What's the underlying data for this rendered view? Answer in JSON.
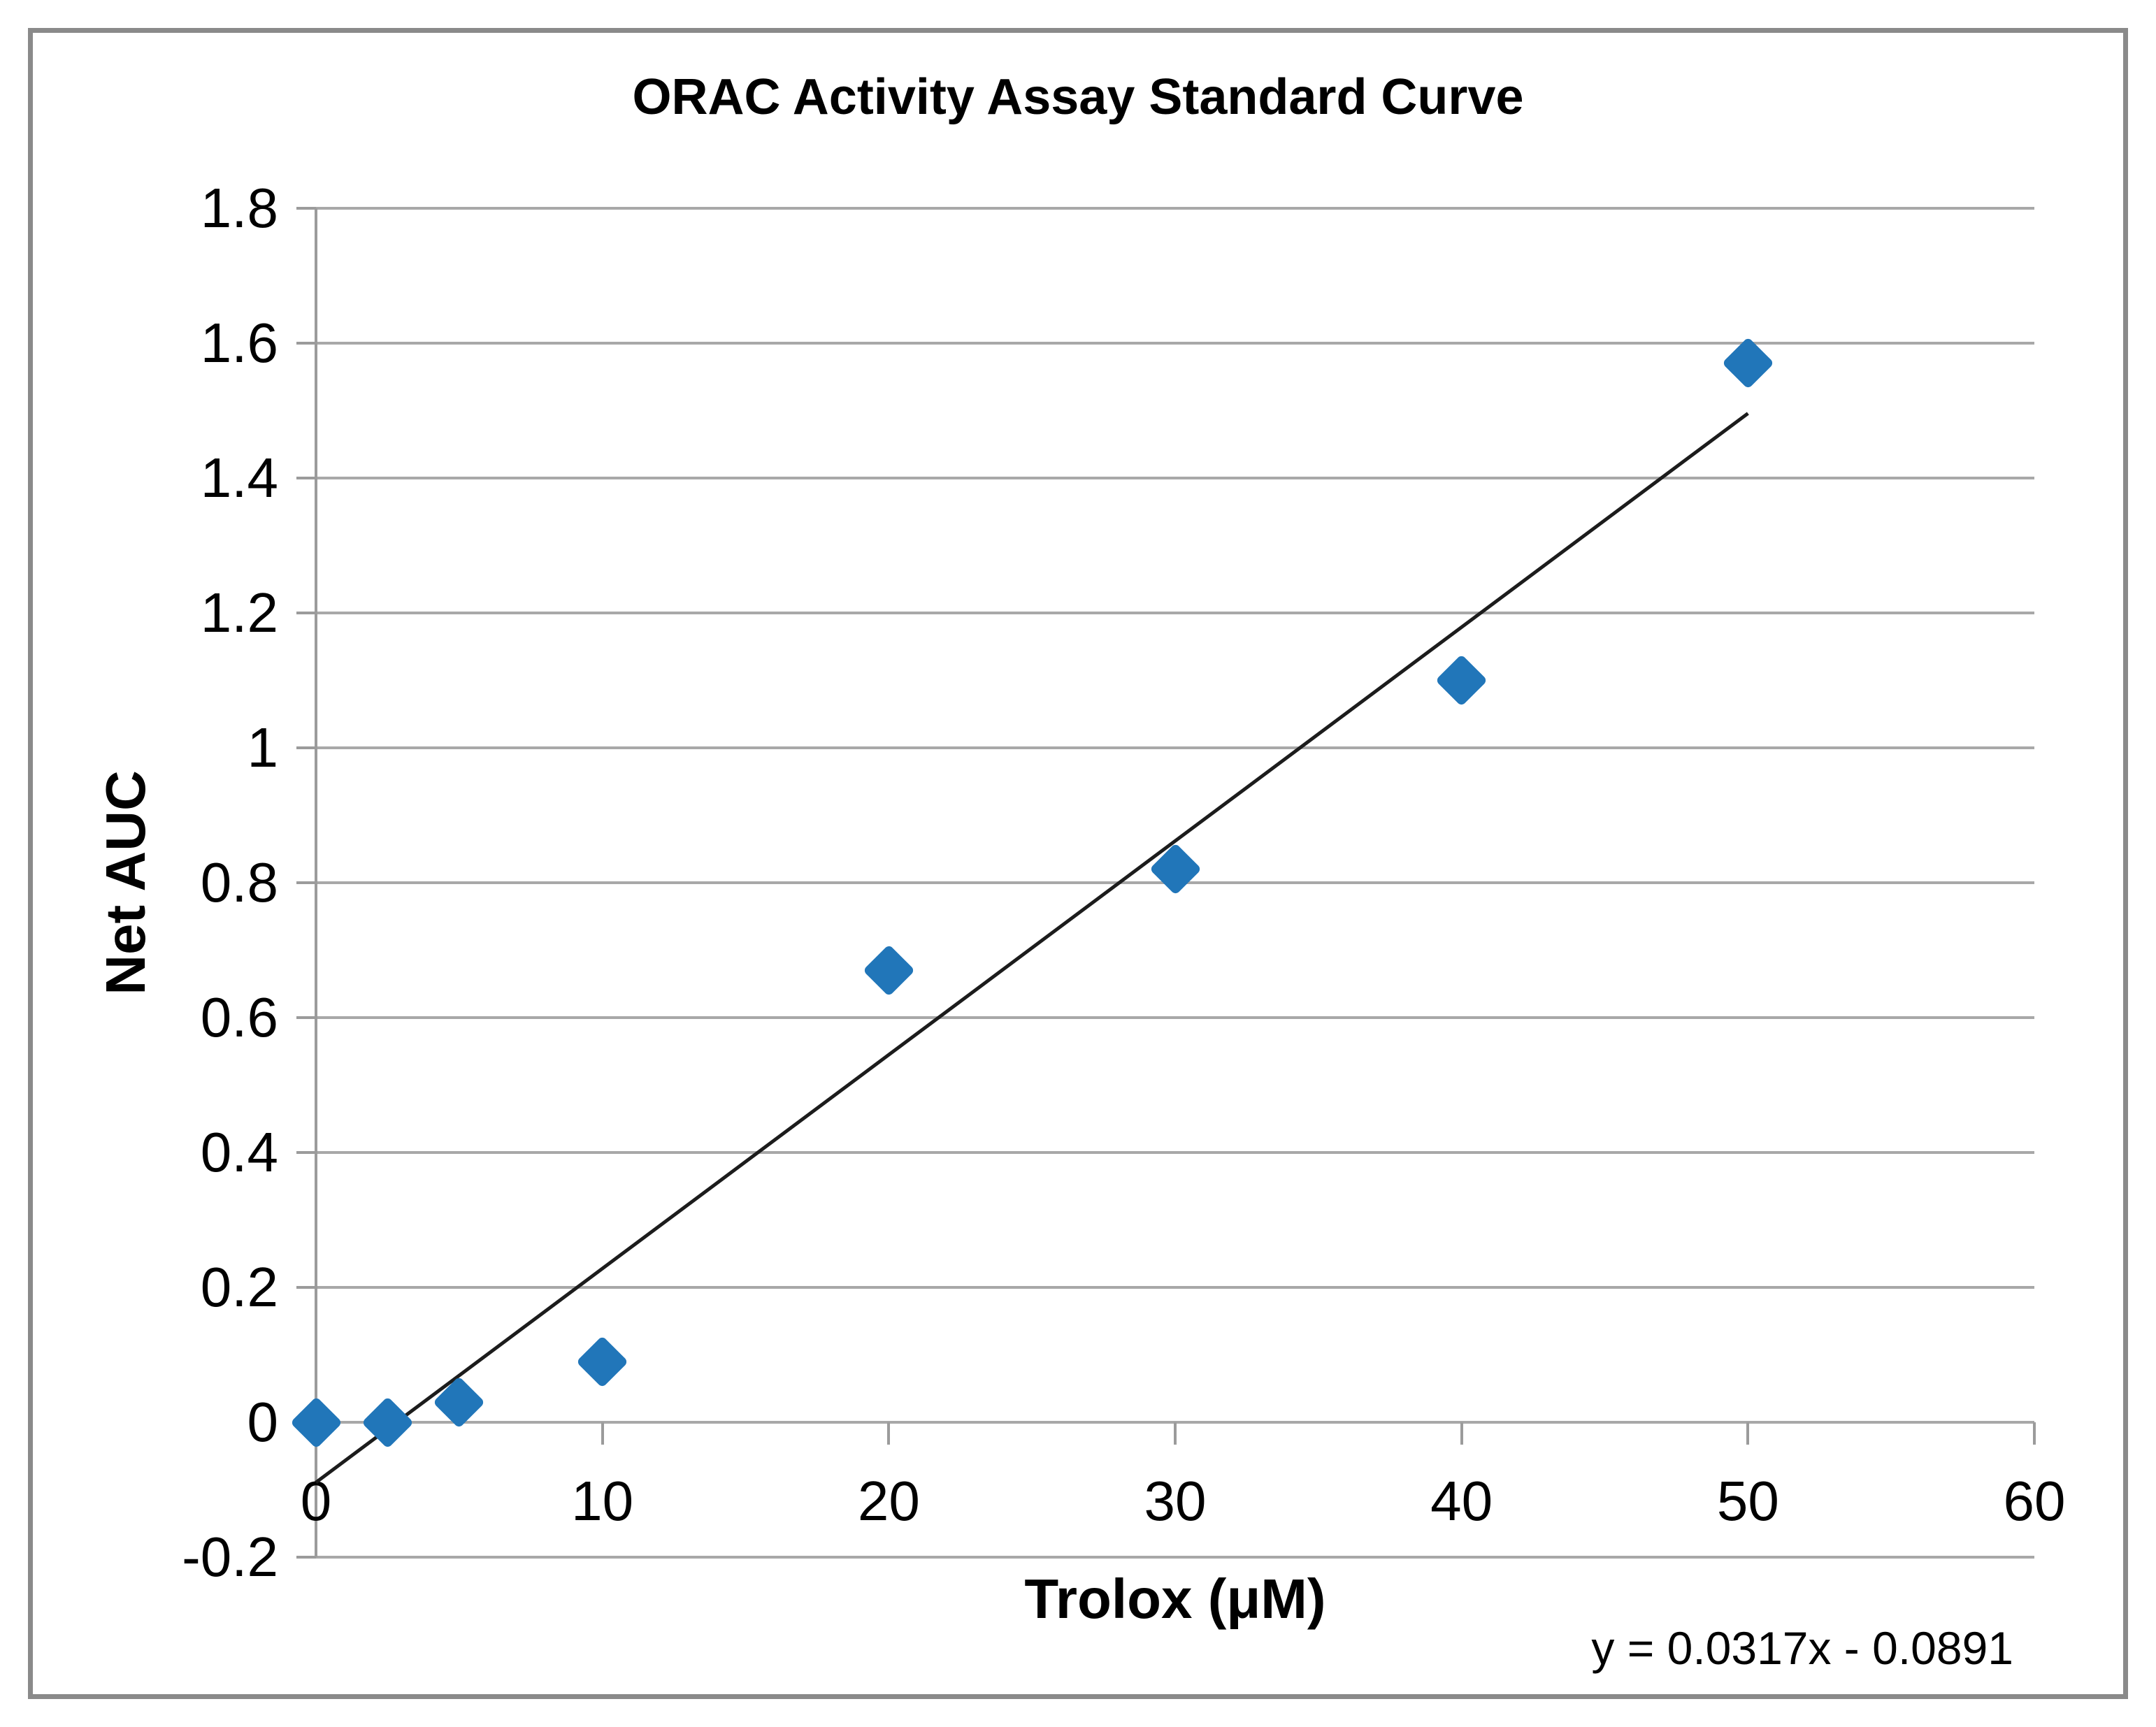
{
  "title": "ORAC Activity Assay Standard Curve",
  "chart_data": {
    "type": "scatter",
    "title": "ORAC Activity Assay Standard Curve",
    "xlabel": "Trolox (μM)",
    "ylabel": "Net AUC",
    "xlim": [
      0,
      60
    ],
    "ylim": [
      -0.2,
      1.8
    ],
    "grid": true,
    "legend": "none",
    "x_ticks": [
      {
        "value": 0,
        "label": "0"
      },
      {
        "value": 10,
        "label": "10"
      },
      {
        "value": 20,
        "label": "20"
      },
      {
        "value": 30,
        "label": "30"
      },
      {
        "value": 40,
        "label": "40"
      },
      {
        "value": 50,
        "label": "50"
      },
      {
        "value": 60,
        "label": "60"
      }
    ],
    "y_ticks": [
      {
        "value": 1.8,
        "label": "1.8"
      },
      {
        "value": 1.6,
        "label": "1.6"
      },
      {
        "value": 1.4,
        "label": "1.4"
      },
      {
        "value": 1.2,
        "label": "1.2"
      },
      {
        "value": 1.0,
        "label": "1"
      },
      {
        "value": 0.8,
        "label": "0.8"
      },
      {
        "value": 0.6,
        "label": "0.6"
      },
      {
        "value": 0.4,
        "label": "0.4"
      },
      {
        "value": 0.2,
        "label": "0.2"
      },
      {
        "value": 0.0,
        "label": "0"
      },
      {
        "value": -0.2,
        "label": "-0.2"
      }
    ],
    "points": [
      {
        "x": 0,
        "y": 0.0
      },
      {
        "x": 2.5,
        "y": 0.0
      },
      {
        "x": 5,
        "y": 0.03
      },
      {
        "x": 10,
        "y": 0.09
      },
      {
        "x": 20,
        "y": 0.67
      },
      {
        "x": 30,
        "y": 0.82
      },
      {
        "x": 40,
        "y": 1.1
      },
      {
        "x": 50,
        "y": 1.57
      }
    ],
    "trendline": {
      "equation": "y = 0.0317x - 0.0891",
      "slope": 0.0317,
      "intercept": -0.0891,
      "x_start": 0,
      "x_end": 50
    },
    "colors": {
      "marker": "#2176b9",
      "trendline": "#1c1c1c",
      "gridline": "#a8a8a8",
      "axis": "#9b9b9b",
      "border": "#8a8a8a",
      "text": "#000000"
    },
    "marker_shape": "diamond"
  }
}
